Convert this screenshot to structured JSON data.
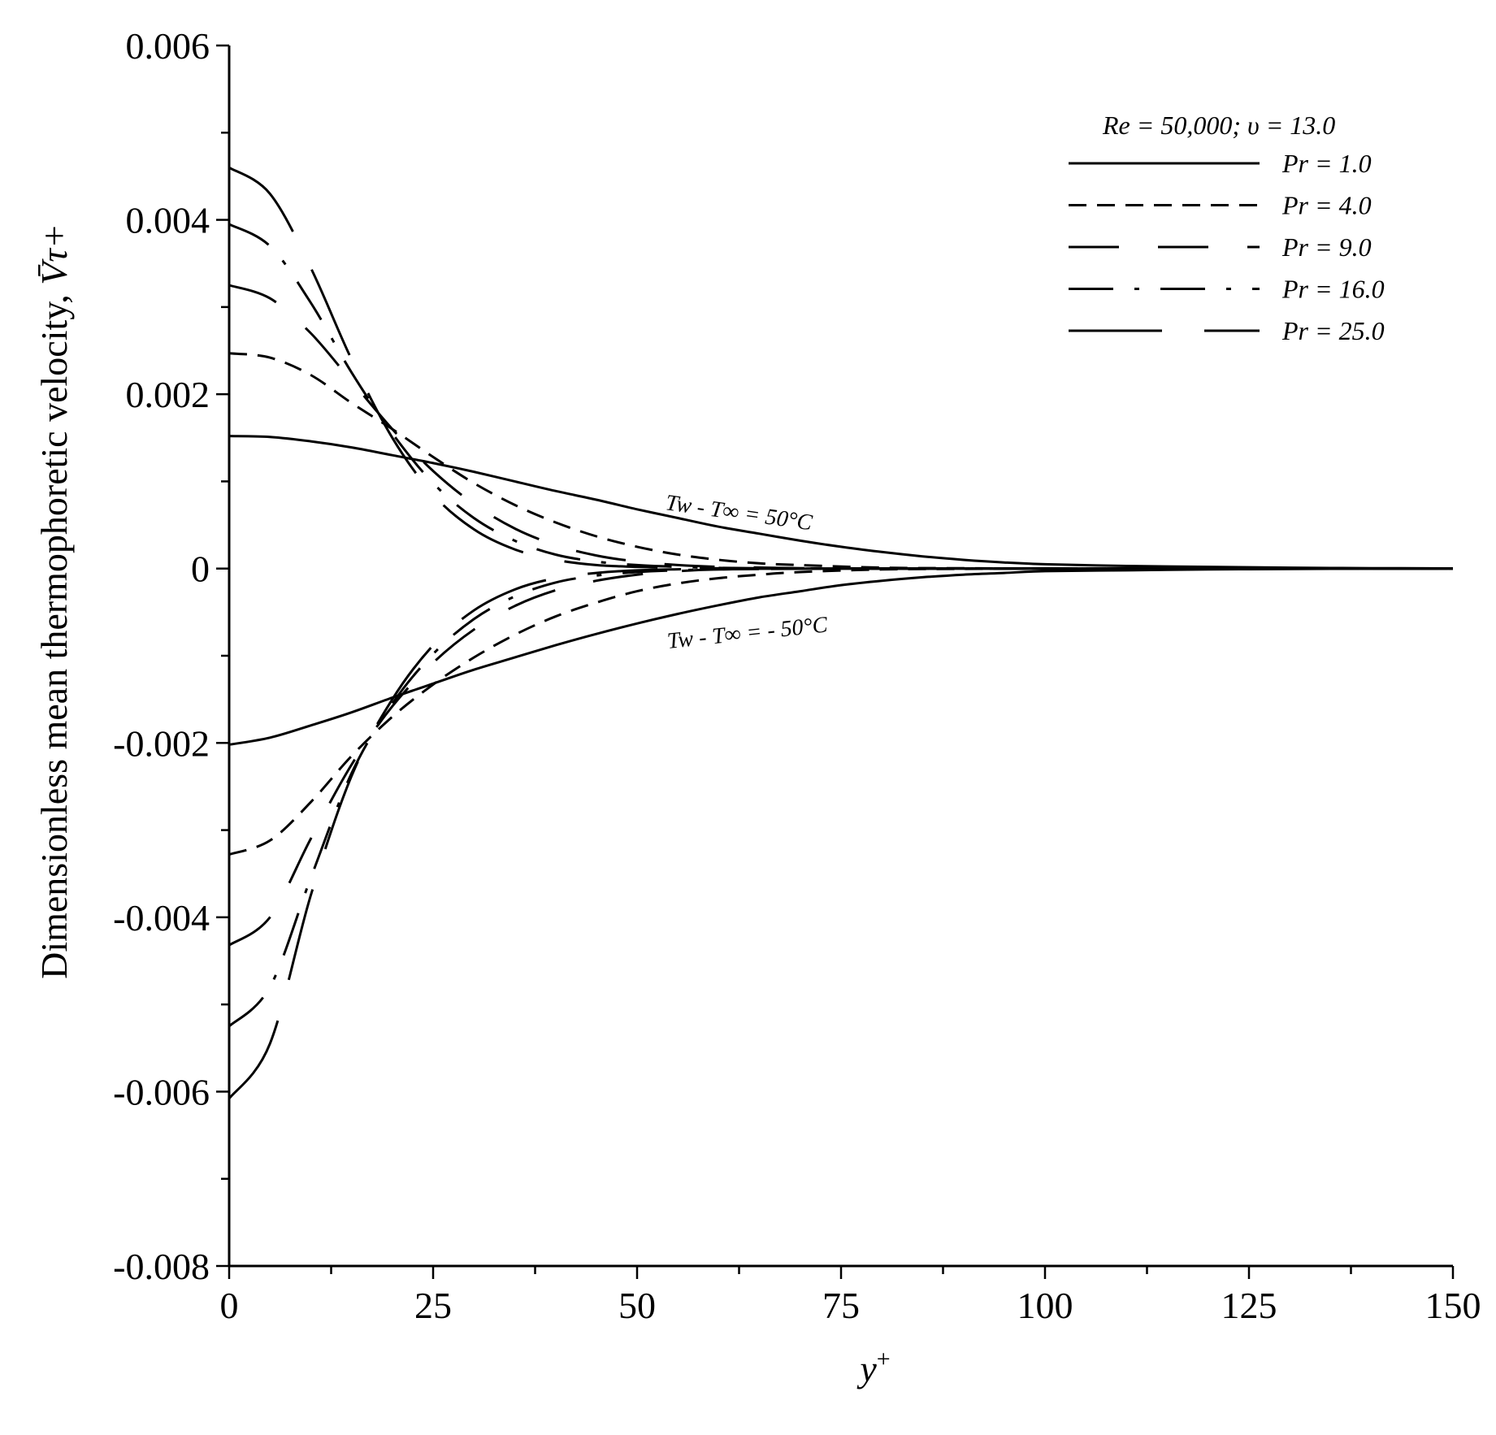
{
  "chart_data": {
    "type": "line",
    "title": "",
    "xlabel": "y",
    "xlabel_sup": "+",
    "ylabel": "Dimensionless mean thermophoretic velocity,",
    "ylabel_symbol": "V̄τ+",
    "xlim": [
      0,
      150
    ],
    "ylim": [
      -0.008,
      0.006
    ],
    "x_ticks": [
      0,
      25,
      50,
      75,
      100,
      125,
      150
    ],
    "x_tick_labels": [
      "0",
      "25",
      "50",
      "75",
      "100",
      "125",
      "150"
    ],
    "y_ticks": [
      -0.008,
      -0.006,
      -0.004,
      -0.002,
      0,
      0.002,
      0.004,
      0.006
    ],
    "y_tick_labels": [
      "-0.008",
      "-0.006",
      "-0.004",
      "-0.002",
      "0",
      "0.002",
      "0.004",
      "0.006"
    ],
    "legend": {
      "title": "Re = 50,000; υ = 13.0",
      "position": "top-right",
      "entries": [
        {
          "label": "Pr = 1.0",
          "style": "solid"
        },
        {
          "label": "Pr = 4.0",
          "style": "dashed"
        },
        {
          "label": "Pr = 9.0",
          "style": "long-dash"
        },
        {
          "label": "Pr = 16.0",
          "style": "dash-dot"
        },
        {
          "label": "Pr = 25.0",
          "style": "long-dash-2"
        }
      ]
    },
    "annotations": [
      {
        "text": "Tw - T∞ = 50°C"
      },
      {
        "text": "Tw - T∞ = - 50°C"
      }
    ],
    "series": [
      {
        "name": "Pr = 1.0",
        "group": "Tw - T∞ = 50°C",
        "style": "solid",
        "x": [
          0,
          5,
          10,
          15,
          20,
          25,
          30,
          35,
          40,
          45,
          50,
          55,
          60,
          65,
          70,
          75,
          80,
          85,
          90,
          95,
          100,
          110,
          120,
          130,
          140,
          150
        ],
        "y": [
          0.00152,
          0.00151,
          0.00146,
          0.00139,
          0.0013,
          0.00121,
          0.00111,
          0.001,
          0.00089,
          0.00079,
          0.00068,
          0.00058,
          0.00048,
          0.0004,
          0.00032,
          0.00025,
          0.00019,
          0.00014,
          0.0001,
          7e-05,
          5e-05,
          3e-05,
          2e-05,
          1e-05,
          5e-06,
          2e-06
        ]
      },
      {
        "name": "Pr = 4.0",
        "group": "Tw - T∞ = 50°C",
        "style": "dashed",
        "x": [
          0,
          5,
          10,
          15,
          20,
          25,
          30,
          35,
          40,
          45,
          50,
          55,
          60,
          65,
          70,
          80,
          90,
          100,
          150
        ],
        "y": [
          0.00247,
          0.00242,
          0.00222,
          0.0019,
          0.0016,
          0.00128,
          0.00098,
          0.00073,
          0.00053,
          0.00037,
          0.00025,
          0.00016,
          0.0001,
          6e-05,
          4e-05,
          1e-05,
          4e-06,
          1e-06,
          0
        ]
      },
      {
        "name": "Pr = 9.0",
        "group": "Tw - T∞ = 50°C",
        "style": "long-dash",
        "x": [
          0,
          5,
          10,
          15,
          20,
          25,
          30,
          35,
          40,
          45,
          50,
          55,
          60,
          70,
          80,
          100,
          150
        ],
        "y": [
          0.00325,
          0.0031,
          0.0027,
          0.00215,
          0.0016,
          0.00112,
          0.00074,
          0.00046,
          0.00027,
          0.00015,
          8e-05,
          4e-05,
          2e-05,
          5e-06,
          1e-06,
          0,
          0
        ]
      },
      {
        "name": "Pr = 16.0",
        "group": "Tw - T∞ = 50°C",
        "style": "dash-dot",
        "x": [
          0,
          5,
          10,
          15,
          20,
          25,
          30,
          35,
          40,
          45,
          50,
          55,
          60,
          70,
          80,
          100,
          150
        ],
        "y": [
          0.00395,
          0.0037,
          0.00305,
          0.00225,
          0.00155,
          0.00098,
          0.00058,
          0.00032,
          0.00016,
          8e-05,
          4e-05,
          2e-05,
          8e-06,
          2e-06,
          0,
          0,
          0
        ]
      },
      {
        "name": "Pr = 25.0",
        "group": "Tw - T∞ = 50°C",
        "style": "long-dash-2",
        "x": [
          0,
          5,
          10,
          15,
          20,
          25,
          30,
          35,
          40,
          45,
          50,
          55,
          60,
          70,
          80,
          100,
          150
        ],
        "y": [
          0.0046,
          0.0043,
          0.00345,
          0.0024,
          0.0015,
          0.00085,
          0.00045,
          0.00022,
          0.0001,
          4e-05,
          2e-05,
          8e-06,
          3e-06,
          1e-06,
          0,
          0,
          0
        ]
      },
      {
        "name": "Pr = 1.0",
        "group": "Tw - T∞ = - 50°C",
        "style": "solid",
        "x": [
          0,
          5,
          10,
          15,
          20,
          25,
          30,
          35,
          40,
          45,
          50,
          55,
          60,
          65,
          70,
          75,
          80,
          85,
          90,
          95,
          100,
          110,
          120,
          130,
          140,
          150
        ],
        "y": [
          -0.00202,
          -0.00194,
          -0.0018,
          -0.00165,
          -0.00148,
          -0.00132,
          -0.00116,
          -0.00102,
          -0.00088,
          -0.00075,
          -0.00063,
          -0.00052,
          -0.00042,
          -0.00033,
          -0.00026,
          -0.00019,
          -0.00014,
          -0.0001,
          -7e-05,
          -5e-05,
          -3e-05,
          -2e-05,
          -1e-05,
          -5e-06,
          -2e-06,
          0
        ]
      },
      {
        "name": "Pr = 4.0",
        "group": "Tw - T∞ = - 50°C",
        "style": "dashed",
        "x": [
          0,
          5,
          10,
          15,
          20,
          25,
          30,
          35,
          40,
          45,
          50,
          55,
          60,
          65,
          70,
          80,
          90,
          100,
          150
        ],
        "y": [
          -0.00328,
          -0.00312,
          -0.00268,
          -0.00215,
          -0.0017,
          -0.00133,
          -0.00102,
          -0.00076,
          -0.00055,
          -0.00039,
          -0.00026,
          -0.00017,
          -0.00011,
          -7e-05,
          -4e-05,
          -1e-05,
          -4e-06,
          -1e-06,
          0
        ]
      },
      {
        "name": "Pr = 9.0",
        "group": "Tw - T∞ = - 50°C",
        "style": "long-dash",
        "x": [
          0,
          5,
          10,
          15,
          20,
          25,
          30,
          35,
          40,
          45,
          50,
          55,
          60,
          70,
          80,
          100,
          150
        ],
        "y": [
          -0.00432,
          -0.004,
          -0.0031,
          -0.00225,
          -0.00158,
          -0.00108,
          -0.0007,
          -0.00043,
          -0.00025,
          -0.00014,
          -7e-05,
          -3e-05,
          -1e-05,
          -3e-06,
          0,
          0,
          0
        ]
      },
      {
        "name": "Pr = 16.0",
        "group": "Tw - T∞ = - 50°C",
        "style": "dash-dot",
        "x": [
          0,
          5,
          10,
          15,
          20,
          25,
          30,
          35,
          40,
          45,
          50,
          55,
          60,
          70,
          80,
          100,
          150
        ],
        "y": [
          -0.00525,
          -0.0048,
          -0.00355,
          -0.00235,
          -0.00155,
          -0.00098,
          -0.00058,
          -0.00032,
          -0.00016,
          -8e-05,
          -4e-05,
          -2e-05,
          -8e-06,
          -2e-06,
          0,
          0,
          0
        ]
      },
      {
        "name": "Pr = 25.0",
        "group": "Tw - T∞ = - 50°C",
        "style": "long-dash-2",
        "x": [
          0,
          5,
          10,
          15,
          20,
          25,
          30,
          35,
          40,
          45,
          50,
          55,
          60,
          70,
          80,
          100,
          150
        ],
        "y": [
          -0.00608,
          -0.00545,
          -0.00375,
          -0.00238,
          -0.0015,
          -0.00088,
          -0.00048,
          -0.00024,
          -0.00011,
          -5e-05,
          -2e-05,
          -8e-06,
          -3e-06,
          -1e-06,
          0,
          0,
          0
        ]
      }
    ]
  }
}
